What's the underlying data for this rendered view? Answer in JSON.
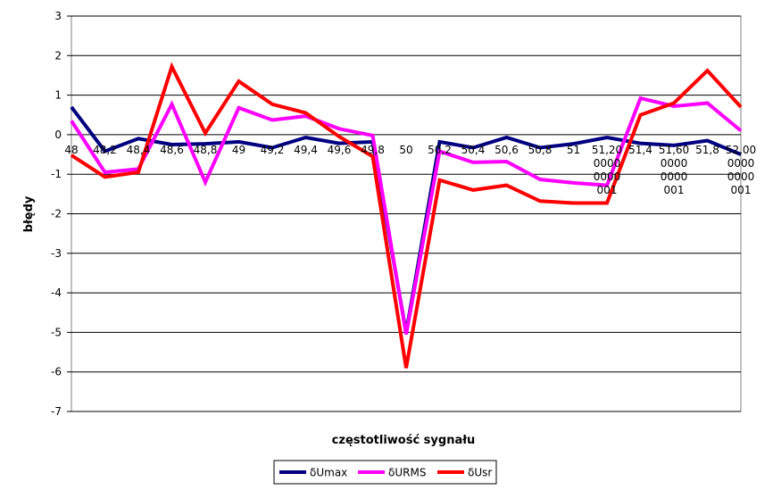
{
  "chart_data": {
    "type": "line",
    "title": "",
    "xlabel": "częstotliwość sygnału",
    "ylabel": "błędy",
    "ylim": [
      -7,
      3
    ],
    "yticks": [
      "3",
      "2",
      "1",
      "0",
      "-1",
      "-2",
      "-3",
      "-4",
      "-5",
      "-6",
      "-7"
    ],
    "grid": true,
    "legend_position": "bottom",
    "categories": [
      "48",
      "48,2",
      "48,4",
      "48,6",
      "48,8",
      "49",
      "49,2",
      "49,4",
      "49,6",
      "49,8",
      "50",
      "50,2",
      "50,4",
      "50,6",
      "50,8",
      "51",
      "51,200000000001",
      "51,4",
      "51,600000000001",
      "51,8",
      "52,000000000001"
    ],
    "category_label_lines": [
      [
        "48"
      ],
      [
        "48,2"
      ],
      [
        "48,4"
      ],
      [
        "48,6"
      ],
      [
        "48,8"
      ],
      [
        "49"
      ],
      [
        "49,2"
      ],
      [
        "49,4"
      ],
      [
        "49,6"
      ],
      [
        "49,8"
      ],
      [
        "50"
      ],
      [
        "50,2"
      ],
      [
        "50,4"
      ],
      [
        "50,6"
      ],
      [
        "50,8"
      ],
      [
        "51"
      ],
      [
        "51,20",
        "0000",
        "0000",
        "001"
      ],
      [
        "51,4"
      ],
      [
        "51,60",
        "0000",
        "0000",
        "001"
      ],
      [
        "51,8"
      ],
      [
        "52,00",
        "0000",
        "0000",
        "001"
      ]
    ],
    "series": [
      {
        "name": "δUmax",
        "color": "#000080",
        "values": [
          0.7,
          -0.42,
          -0.1,
          -0.25,
          -0.23,
          -0.18,
          -0.33,
          -0.07,
          -0.22,
          -0.18,
          -5.0,
          -0.18,
          -0.33,
          -0.07,
          -0.33,
          -0.23,
          -0.07,
          -0.22,
          -0.27,
          -0.15,
          -0.5
        ]
      },
      {
        "name": "δURMS",
        "color": "#FF00FF",
        "values": [
          0.35,
          -0.95,
          -0.87,
          0.77,
          -1.2,
          0.68,
          0.37,
          0.47,
          0.15,
          -0.02,
          -5.05,
          -0.42,
          -0.7,
          -0.68,
          -1.13,
          -1.22,
          -1.28,
          0.92,
          0.72,
          0.8,
          0.1
        ]
      },
      {
        "name": "δUsr",
        "color": "#FF0000",
        "values": [
          -0.52,
          -1.07,
          -0.95,
          1.72,
          0.04,
          1.35,
          0.77,
          0.55,
          -0.05,
          -0.55,
          -5.9,
          -1.15,
          -1.4,
          -1.28,
          -1.68,
          -1.73,
          -1.73,
          0.5,
          0.8,
          1.62,
          0.7
        ]
      }
    ]
  }
}
